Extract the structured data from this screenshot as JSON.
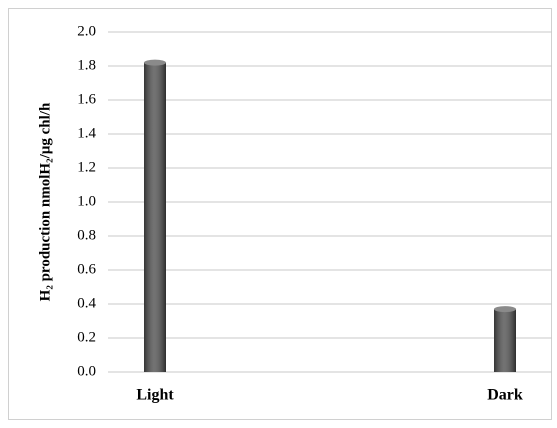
{
  "chart_data": {
    "type": "bar",
    "y_label": "H₂ production nmolH₂/µg chl/h",
    "categories": [
      "Light",
      "Dark"
    ],
    "values": [
      1.82,
      0.37
    ],
    "color": "#505050",
    "ylim": [
      0,
      2.0
    ],
    "yticks": [
      {
        "value": 0,
        "label": "0.0"
      },
      0.2,
      0.4,
      0.6,
      0.8,
      {
        "value": 1.0,
        "label": "1.0"
      },
      1.2,
      1.4,
      1.6,
      1.8,
      {
        "value": 2.0,
        "label": "2.0"
      }
    ],
    "grid": true
  }
}
